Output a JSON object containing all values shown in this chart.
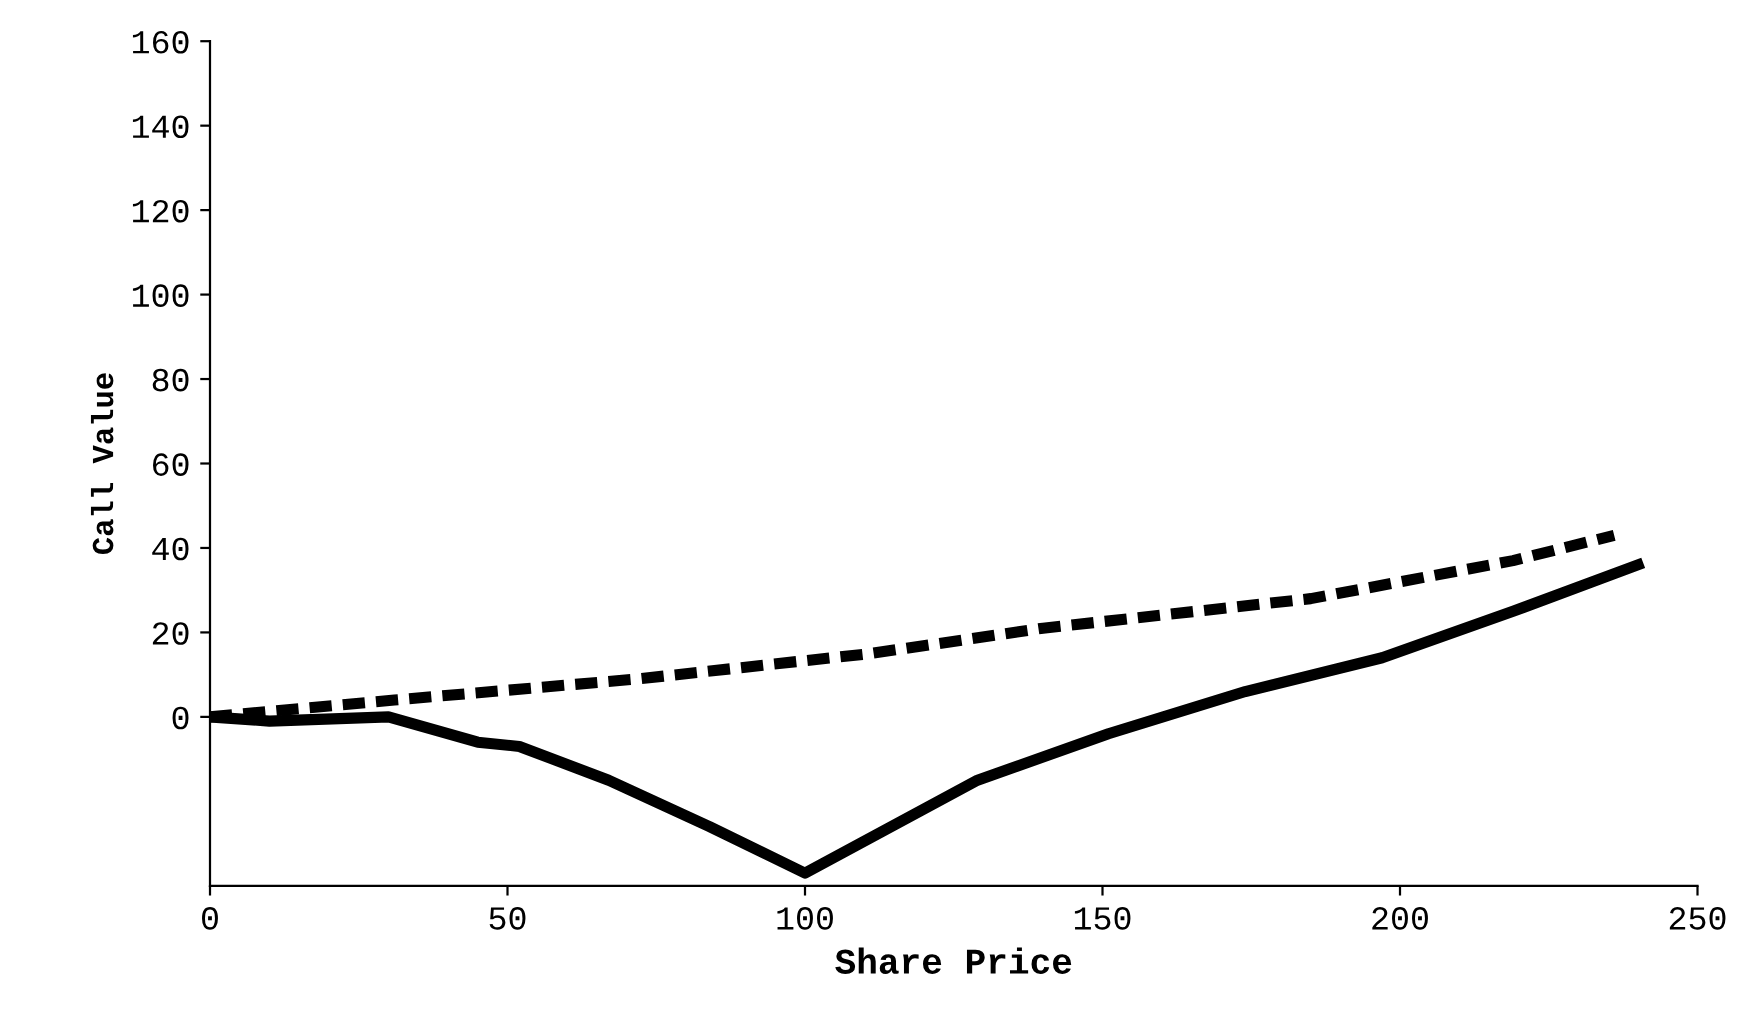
{
  "chart_data": {
    "type": "line",
    "xlabel": "Share Price",
    "ylabel": "Call Value",
    "xlim": [
      0,
      250
    ],
    "xticks": [
      0,
      50,
      100,
      150,
      200,
      250
    ],
    "ylim": [
      -40,
      160
    ],
    "yticks": [
      0,
      20,
      40,
      60,
      80,
      100,
      120,
      140,
      160
    ],
    "grid": false,
    "legend": false,
    "marker": "none",
    "series": [
      {
        "color": "#000000",
        "line_style": "dashed",
        "x": [
          0,
          31,
          72,
          111,
          140,
          185,
          219,
          236
        ],
        "values": [
          0,
          4,
          9,
          15,
          21,
          28,
          37,
          43
        ]
      },
      {
        "color": "#000000",
        "line_style": "solid",
        "x": [
          0,
          10,
          30,
          45,
          52,
          67,
          84,
          100,
          129,
          151,
          174,
          197,
          219,
          240
        ],
        "values": [
          0,
          -1,
          0,
          -6,
          -7,
          -15,
          -26,
          -37,
          -15,
          -4,
          6,
          14,
          25,
          36
        ]
      }
    ]
  }
}
